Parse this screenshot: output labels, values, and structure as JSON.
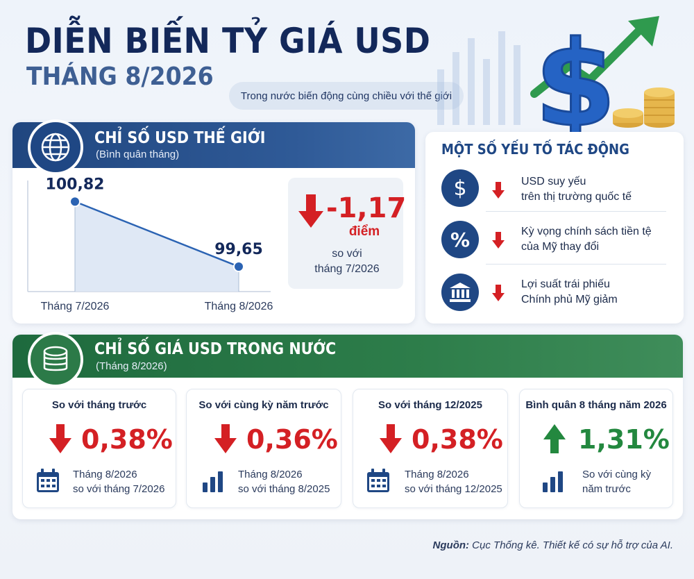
{
  "header": {
    "title": "DIỄN BIẾN TỶ GIÁ USD",
    "subtitle": "THÁNG 8/2026",
    "tagline": "Trong nước biến động cùng chiều với thế giới"
  },
  "world_index": {
    "title": "CHỈ SỐ USD THẾ GIỚI",
    "subtitle": "(Bình quân tháng)",
    "delta_value": "-1,17",
    "delta_unit": "điểm",
    "delta_compare_line1": "so với",
    "delta_compare_line2": "tháng 7/2026"
  },
  "chart_data": {
    "type": "line",
    "categories": [
      "Tháng 7/2026",
      "Tháng 8/2026"
    ],
    "values": [
      100.82,
      99.65
    ],
    "value_labels": [
      "100,82",
      "99,65"
    ],
    "ylim": [
      99.2,
      101.2
    ],
    "grid": false,
    "colors": {
      "line": "#2b63b3",
      "fill": "#dbe6f4"
    }
  },
  "factors": {
    "title": "MỘT SỐ YẾU TỐ TÁC ĐỘNG",
    "items": [
      {
        "icon": "dollar-icon",
        "glyph": "$",
        "line1": "USD suy yếu",
        "line2": "trên thị trường quốc tế"
      },
      {
        "icon": "percent-icon",
        "glyph": "%",
        "line1": "Kỳ vọng chính sách tiền tệ",
        "line2": "của Mỹ thay đổi"
      },
      {
        "icon": "bank-icon",
        "glyph": "",
        "line1": "Lợi suất trái phiếu",
        "line2": "Chính phủ Mỹ giảm"
      }
    ]
  },
  "domestic": {
    "title": "CHỈ SỐ GIÁ USD TRONG NƯỚC",
    "subtitle": "(Tháng 8/2026)",
    "boxes": [
      {
        "head": "So với tháng trước",
        "value": "0,38%",
        "direction": "down",
        "icon": "calendar-icon",
        "note1": "Tháng 8/2026",
        "note2": "so với tháng 7/2026"
      },
      {
        "head": "So với cùng kỳ năm trước",
        "value": "0,36%",
        "direction": "down",
        "icon": "bar-chart-icon",
        "note1": "Tháng 8/2026",
        "note2": "so với tháng 8/2025"
      },
      {
        "head": "So với tháng 12/2025",
        "value": "0,38%",
        "direction": "down",
        "icon": "calendar-icon",
        "note1": "Tháng 8/2026",
        "note2": "so với tháng 12/2025"
      },
      {
        "head": "Bình quân 8 tháng năm 2026",
        "value": "1,31%",
        "direction": "up",
        "icon": "bar-chart-icon",
        "note1": "So với cùng kỳ",
        "note2": "năm trước"
      }
    ]
  },
  "source": {
    "label": "Nguồn:",
    "text": " Cục Thống kê. Thiết kế có sự hỗ trợ của AI."
  },
  "colors": {
    "navy": "#1f4784",
    "green": "#2c7a48",
    "down": "#d42024",
    "up": "#23883f"
  }
}
